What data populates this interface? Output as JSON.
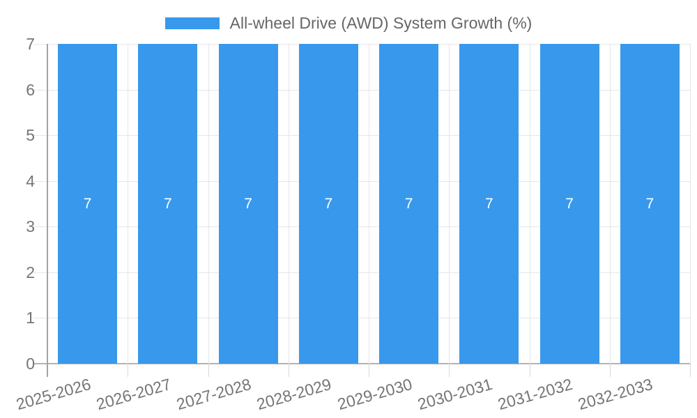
{
  "chart_data": {
    "type": "bar",
    "title": "All-wheel Drive (AWD) System Growth (%)",
    "categories": [
      "2025-2026",
      "2026-2027",
      "2027-2028",
      "2028-2029",
      "2029-2030",
      "2030-2031",
      "2031-2032",
      "2032-2033"
    ],
    "series": [
      {
        "name": "All-wheel Drive (AWD) System Growth (%)",
        "values": [
          7,
          7,
          7,
          7,
          7,
          7,
          7,
          7
        ]
      }
    ],
    "bar_labels": [
      "7",
      "7",
      "7",
      "7",
      "7",
      "7",
      "7",
      "7"
    ],
    "xlabel": "",
    "ylabel": "",
    "ylim": [
      0,
      7
    ],
    "yticks": [
      0,
      1,
      2,
      3,
      4,
      5,
      6,
      7
    ],
    "grid": true,
    "legend_position": "top",
    "colors": {
      "bar": "#3898EC",
      "bar_label": "#ffffff",
      "grid": "#e6e6e6",
      "x_axis_line": "#b3b3b3",
      "y_axis_line": "#a3a3a3",
      "tick_mark": "#d9d9d9",
      "tick_text": "#757575",
      "legend_text": "#666666"
    }
  }
}
